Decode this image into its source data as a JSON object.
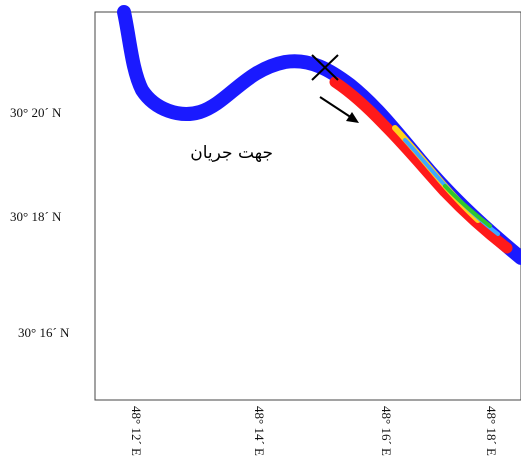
{
  "map": {
    "lat_ticks": [
      "30° 20´ N",
      "30° 18´ N",
      "30° 16´ N"
    ],
    "lon_ticks": [
      "48° 12´ E",
      "48° 14´ E",
      "48° 16´ E",
      "48° 18´ E"
    ],
    "annotation": "جهت جریان",
    "colors": {
      "river": "#1a1aff",
      "plume_outer": "#ff1a1a",
      "plume_mid": "#ffd21a",
      "plume_core": "#3ea8ff",
      "plume_inner": "#2ec82e",
      "frame": "#444444"
    }
  }
}
